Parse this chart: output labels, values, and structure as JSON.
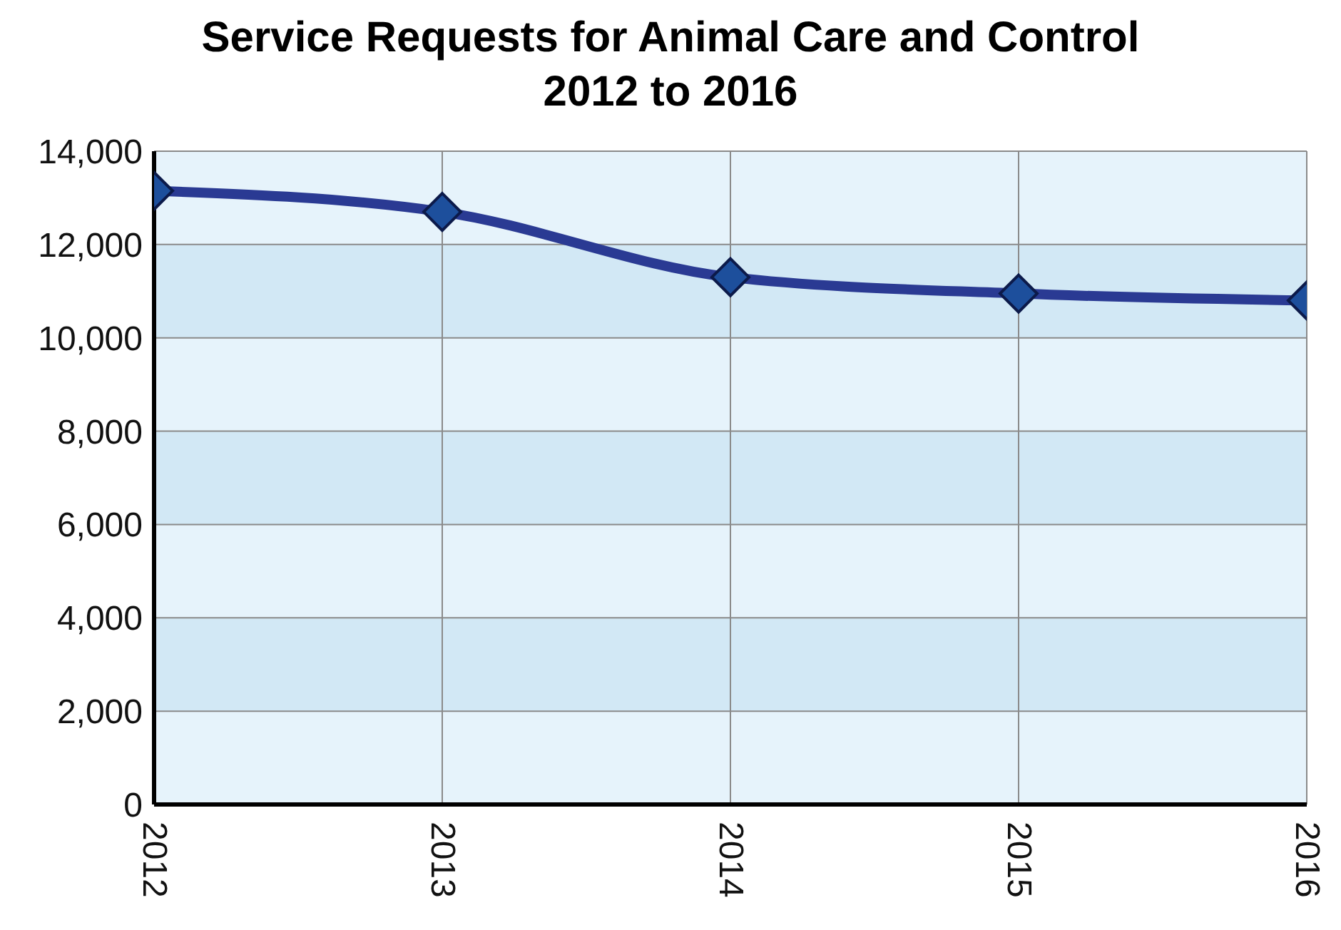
{
  "chart_data": {
    "type": "line",
    "title": "Service Requests for Animal Care and Control\n2012 to 2016",
    "categories": [
      "2012",
      "2013",
      "2014",
      "2015",
      "2016"
    ],
    "series": [
      {
        "color": "#2a3a93",
        "values": [
          13150,
          12700,
          11300,
          10950,
          10800
        ]
      }
    ],
    "ylim": [
      0,
      14000
    ],
    "yticks": [
      0,
      {
        "value": 2000,
        "label": "2,000"
      },
      {
        "value": 4000,
        "label": "4,000"
      },
      {
        "value": 6000,
        "label": "6,000"
      },
      {
        "value": 8000,
        "label": "8,000"
      },
      {
        "value": 10000,
        "label": "10,000"
      },
      {
        "value": 12000,
        "label": "12,000"
      },
      {
        "value": 14000,
        "label": "14,000"
      }
    ],
    "grid": true,
    "legend": false,
    "marker": "diamond",
    "line_style": "solid"
  }
}
